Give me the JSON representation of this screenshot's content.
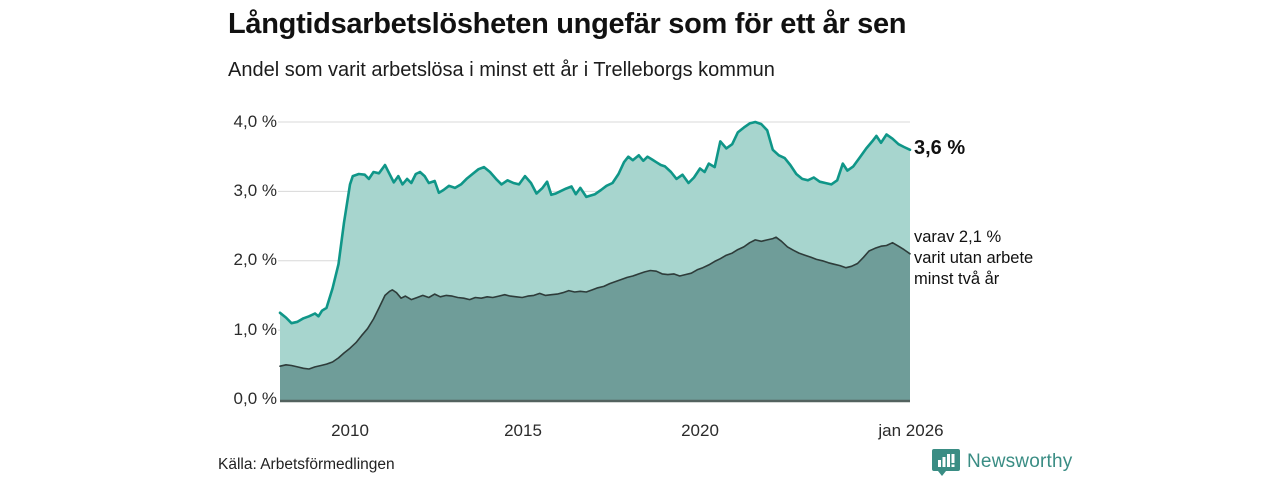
{
  "header": {
    "title": "Långtidsarbetslösheten ungefär som för ett år sen",
    "subtitle": "Andel som varit arbetslösa i minst ett år i Trelleborgs kommun"
  },
  "chart_data": {
    "type": "area",
    "title": "Långtidsarbetslösheten ungefär som för ett år sen",
    "subtitle": "Andel som varit arbetslösa i minst ett år i Trelleborgs kommun",
    "x_range": [
      2008,
      2026
    ],
    "y_range": [
      0,
      4
    ],
    "grid": true,
    "legend_position": "right-annotations",
    "y_ticks": [
      {
        "value": 0,
        "label": "0,0 %"
      },
      {
        "value": 1,
        "label": "1,0 %"
      },
      {
        "value": 2,
        "label": "2,0 %"
      },
      {
        "value": 3,
        "label": "3,0 %"
      },
      {
        "value": 4,
        "label": "4,0 %"
      }
    ],
    "x_ticks": [
      {
        "value": 2010,
        "label": "2010"
      },
      {
        "value": 2015,
        "label": "2015"
      },
      {
        "value": 2020,
        "label": "2020"
      },
      {
        "value": 2026,
        "label": "jan 2026"
      }
    ],
    "series": [
      {
        "name": "Andel som varit arbetslösa i minst ett år",
        "end_value_pct": 3.6,
        "color": "#0f9688",
        "fill": "#a7d5ce",
        "stroke_width": 2.6,
        "points": [
          [
            2008.0,
            1.25
          ],
          [
            2008.17,
            1.18
          ],
          [
            2008.33,
            1.1
          ],
          [
            2008.5,
            1.12
          ],
          [
            2008.67,
            1.17
          ],
          [
            2008.83,
            1.2
          ],
          [
            2009.0,
            1.24
          ],
          [
            2009.1,
            1.2
          ],
          [
            2009.2,
            1.28
          ],
          [
            2009.33,
            1.32
          ],
          [
            2009.5,
            1.6
          ],
          [
            2009.67,
            1.95
          ],
          [
            2009.83,
            2.55
          ],
          [
            2010.0,
            3.1
          ],
          [
            2010.08,
            3.22
          ],
          [
            2010.25,
            3.25
          ],
          [
            2010.42,
            3.24
          ],
          [
            2010.54,
            3.18
          ],
          [
            2010.67,
            3.28
          ],
          [
            2010.83,
            3.26
          ],
          [
            2011.0,
            3.38
          ],
          [
            2011.08,
            3.3
          ],
          [
            2011.25,
            3.13
          ],
          [
            2011.38,
            3.22
          ],
          [
            2011.5,
            3.1
          ],
          [
            2011.63,
            3.18
          ],
          [
            2011.75,
            3.12
          ],
          [
            2011.88,
            3.25
          ],
          [
            2012.0,
            3.28
          ],
          [
            2012.13,
            3.22
          ],
          [
            2012.25,
            3.12
          ],
          [
            2012.42,
            3.15
          ],
          [
            2012.54,
            2.98
          ],
          [
            2012.67,
            3.02
          ],
          [
            2012.83,
            3.08
          ],
          [
            2013.0,
            3.05
          ],
          [
            2013.17,
            3.1
          ],
          [
            2013.33,
            3.18
          ],
          [
            2013.5,
            3.25
          ],
          [
            2013.67,
            3.32
          ],
          [
            2013.83,
            3.35
          ],
          [
            2014.0,
            3.28
          ],
          [
            2014.17,
            3.18
          ],
          [
            2014.33,
            3.1
          ],
          [
            2014.5,
            3.16
          ],
          [
            2014.67,
            3.12
          ],
          [
            2014.83,
            3.1
          ],
          [
            2015.0,
            3.22
          ],
          [
            2015.17,
            3.12
          ],
          [
            2015.33,
            2.97
          ],
          [
            2015.5,
            3.05
          ],
          [
            2015.63,
            3.14
          ],
          [
            2015.75,
            2.95
          ],
          [
            2015.88,
            2.97
          ],
          [
            2016.0,
            3.0
          ],
          [
            2016.17,
            3.04
          ],
          [
            2016.33,
            3.07
          ],
          [
            2016.45,
            2.96
          ],
          [
            2016.58,
            3.05
          ],
          [
            2016.75,
            2.92
          ],
          [
            2016.88,
            2.94
          ],
          [
            2017.0,
            2.96
          ],
          [
            2017.17,
            3.02
          ],
          [
            2017.33,
            3.08
          ],
          [
            2017.5,
            3.12
          ],
          [
            2017.67,
            3.25
          ],
          [
            2017.83,
            3.42
          ],
          [
            2017.95,
            3.5
          ],
          [
            2018.08,
            3.45
          ],
          [
            2018.25,
            3.52
          ],
          [
            2018.38,
            3.44
          ],
          [
            2018.5,
            3.5
          ],
          [
            2018.63,
            3.46
          ],
          [
            2018.75,
            3.42
          ],
          [
            2018.88,
            3.38
          ],
          [
            2019.0,
            3.36
          ],
          [
            2019.17,
            3.28
          ],
          [
            2019.33,
            3.18
          ],
          [
            2019.5,
            3.24
          ],
          [
            2019.67,
            3.12
          ],
          [
            2019.83,
            3.2
          ],
          [
            2020.0,
            3.33
          ],
          [
            2020.13,
            3.28
          ],
          [
            2020.25,
            3.4
          ],
          [
            2020.42,
            3.35
          ],
          [
            2020.58,
            3.72
          ],
          [
            2020.75,
            3.62
          ],
          [
            2020.92,
            3.68
          ],
          [
            2021.08,
            3.85
          ],
          [
            2021.25,
            3.92
          ],
          [
            2021.42,
            3.98
          ],
          [
            2021.58,
            4.0
          ],
          [
            2021.75,
            3.97
          ],
          [
            2021.92,
            3.88
          ],
          [
            2022.08,
            3.6
          ],
          [
            2022.25,
            3.52
          ],
          [
            2022.42,
            3.48
          ],
          [
            2022.58,
            3.38
          ],
          [
            2022.75,
            3.25
          ],
          [
            2022.92,
            3.18
          ],
          [
            2023.08,
            3.16
          ],
          [
            2023.25,
            3.2
          ],
          [
            2023.42,
            3.14
          ],
          [
            2023.58,
            3.12
          ],
          [
            2023.75,
            3.1
          ],
          [
            2023.92,
            3.16
          ],
          [
            2024.08,
            3.4
          ],
          [
            2024.21,
            3.3
          ],
          [
            2024.38,
            3.36
          ],
          [
            2024.58,
            3.5
          ],
          [
            2024.75,
            3.62
          ],
          [
            2024.92,
            3.72
          ],
          [
            2025.04,
            3.8
          ],
          [
            2025.17,
            3.7
          ],
          [
            2025.33,
            3.82
          ],
          [
            2025.5,
            3.76
          ],
          [
            2025.67,
            3.68
          ],
          [
            2025.83,
            3.64
          ],
          [
            2026.0,
            3.6
          ]
        ]
      },
      {
        "name": "varav utan arbete minst två år",
        "end_value_pct": 2.1,
        "color": "#2e3c3a",
        "fill": "#6f9d99",
        "stroke_width": 1.6,
        "points": [
          [
            2008.0,
            0.48
          ],
          [
            2008.17,
            0.5
          ],
          [
            2008.33,
            0.49
          ],
          [
            2008.5,
            0.47
          ],
          [
            2008.67,
            0.45
          ],
          [
            2008.83,
            0.44
          ],
          [
            2009.0,
            0.47
          ],
          [
            2009.17,
            0.49
          ],
          [
            2009.33,
            0.51
          ],
          [
            2009.5,
            0.54
          ],
          [
            2009.67,
            0.6
          ],
          [
            2009.83,
            0.67
          ],
          [
            2010.0,
            0.74
          ],
          [
            2010.17,
            0.82
          ],
          [
            2010.33,
            0.92
          ],
          [
            2010.5,
            1.02
          ],
          [
            2010.67,
            1.16
          ],
          [
            2010.83,
            1.32
          ],
          [
            2011.0,
            1.5
          ],
          [
            2011.13,
            1.56
          ],
          [
            2011.21,
            1.58
          ],
          [
            2011.33,
            1.54
          ],
          [
            2011.46,
            1.46
          ],
          [
            2011.58,
            1.49
          ],
          [
            2011.75,
            1.44
          ],
          [
            2011.92,
            1.47
          ],
          [
            2012.08,
            1.5
          ],
          [
            2012.25,
            1.47
          ],
          [
            2012.42,
            1.52
          ],
          [
            2012.58,
            1.48
          ],
          [
            2012.75,
            1.5
          ],
          [
            2012.92,
            1.49
          ],
          [
            2013.08,
            1.47
          ],
          [
            2013.25,
            1.46
          ],
          [
            2013.42,
            1.44
          ],
          [
            2013.58,
            1.47
          ],
          [
            2013.75,
            1.46
          ],
          [
            2013.92,
            1.48
          ],
          [
            2014.08,
            1.47
          ],
          [
            2014.25,
            1.49
          ],
          [
            2014.42,
            1.51
          ],
          [
            2014.58,
            1.49
          ],
          [
            2014.75,
            1.48
          ],
          [
            2014.92,
            1.47
          ],
          [
            2015.08,
            1.49
          ],
          [
            2015.25,
            1.5
          ],
          [
            2015.42,
            1.53
          ],
          [
            2015.58,
            1.5
          ],
          [
            2015.75,
            1.51
          ],
          [
            2015.92,
            1.52
          ],
          [
            2016.08,
            1.54
          ],
          [
            2016.25,
            1.57
          ],
          [
            2016.42,
            1.55
          ],
          [
            2016.58,
            1.56
          ],
          [
            2016.75,
            1.55
          ],
          [
            2016.92,
            1.58
          ],
          [
            2017.08,
            1.61
          ],
          [
            2017.25,
            1.63
          ],
          [
            2017.42,
            1.67
          ],
          [
            2017.58,
            1.7
          ],
          [
            2017.75,
            1.73
          ],
          [
            2017.92,
            1.76
          ],
          [
            2018.08,
            1.78
          ],
          [
            2018.25,
            1.81
          ],
          [
            2018.42,
            1.84
          ],
          [
            2018.58,
            1.86
          ],
          [
            2018.75,
            1.85
          ],
          [
            2018.92,
            1.81
          ],
          [
            2019.08,
            1.8
          ],
          [
            2019.25,
            1.81
          ],
          [
            2019.42,
            1.78
          ],
          [
            2019.58,
            1.8
          ],
          [
            2019.75,
            1.82
          ],
          [
            2019.92,
            1.87
          ],
          [
            2020.08,
            1.9
          ],
          [
            2020.25,
            1.94
          ],
          [
            2020.42,
            1.99
          ],
          [
            2020.58,
            2.03
          ],
          [
            2020.75,
            2.08
          ],
          [
            2020.92,
            2.11
          ],
          [
            2021.08,
            2.16
          ],
          [
            2021.25,
            2.2
          ],
          [
            2021.42,
            2.26
          ],
          [
            2021.58,
            2.3
          ],
          [
            2021.75,
            2.28
          ],
          [
            2021.92,
            2.3
          ],
          [
            2022.08,
            2.32
          ],
          [
            2022.17,
            2.34
          ],
          [
            2022.33,
            2.28
          ],
          [
            2022.5,
            2.2
          ],
          [
            2022.67,
            2.15
          ],
          [
            2022.83,
            2.11
          ],
          [
            2023.0,
            2.08
          ],
          [
            2023.17,
            2.05
          ],
          [
            2023.33,
            2.02
          ],
          [
            2023.5,
            2.0
          ],
          [
            2023.67,
            1.97
          ],
          [
            2023.83,
            1.95
          ],
          [
            2024.0,
            1.93
          ],
          [
            2024.17,
            1.9
          ],
          [
            2024.33,
            1.92
          ],
          [
            2024.5,
            1.96
          ],
          [
            2024.67,
            2.05
          ],
          [
            2024.83,
            2.14
          ],
          [
            2025.0,
            2.18
          ],
          [
            2025.17,
            2.21
          ],
          [
            2025.33,
            2.22
          ],
          [
            2025.5,
            2.26
          ],
          [
            2025.67,
            2.21
          ],
          [
            2025.83,
            2.16
          ],
          [
            2026.0,
            2.1
          ]
        ]
      }
    ],
    "annotations": {
      "end_value_label": "3,6 %",
      "secondary_lines": [
        "varav 2,1 %",
        "varit utan arbete",
        "minst två år"
      ]
    }
  },
  "footer": {
    "source": "Källa: Arbetsförmedlingen",
    "brand": "Newsworthy"
  },
  "colors": {
    "total_line": "#0f9688",
    "total_fill": "#a7d5ce",
    "secondary_line": "#2e3c3a",
    "secondary_fill": "#6f9d99",
    "gridline": "#d8d8d8",
    "axis_line": "#53625f",
    "brand_teal": "#3a8d84"
  }
}
